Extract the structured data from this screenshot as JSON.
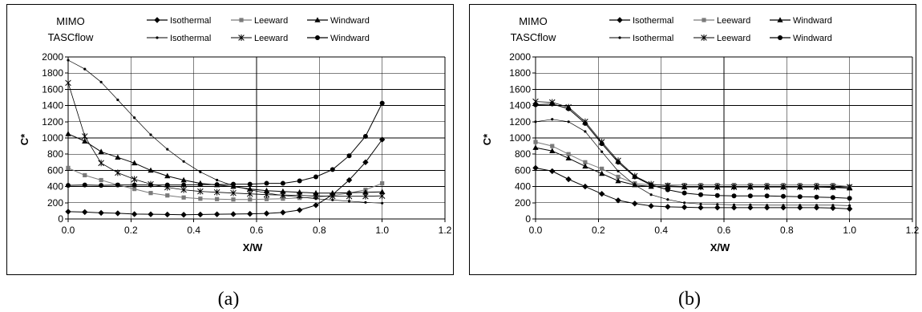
{
  "chart_data": [
    {
      "type": "line",
      "panel": "a",
      "caption": "(a)",
      "xlabel": "X/W",
      "ylabel": "C*",
      "xlim": [
        0,
        1.2
      ],
      "ylim": [
        0,
        2000
      ],
      "xticks": [
        "0.0",
        "0.2",
        "0.4",
        "0.6",
        "0.8",
        "1.0",
        "1.2"
      ],
      "yticks": [
        "0",
        "200",
        "400",
        "600",
        "800",
        "1000",
        "1200",
        "1400",
        "1600",
        "1800",
        "2000"
      ],
      "grid": true,
      "legend_groups": [
        "MIMO",
        "TASCflow"
      ],
      "x": [
        0,
        0.053,
        0.105,
        0.158,
        0.211,
        0.263,
        0.316,
        0.368,
        0.421,
        0.474,
        0.526,
        0.579,
        0.632,
        0.684,
        0.737,
        0.789,
        0.842,
        0.895,
        0.947,
        1.0
      ],
      "series": [
        {
          "name": "Isothermal",
          "group": "MIMO",
          "marker": "diamond",
          "values": [
            90,
            85,
            75,
            70,
            60,
            58,
            55,
            52,
            55,
            58,
            60,
            63,
            68,
            80,
            110,
            170,
            300,
            480,
            700,
            980
          ]
        },
        {
          "name": "Leeward",
          "group": "MIMO",
          "marker": "square",
          "values": [
            630,
            540,
            480,
            420,
            370,
            320,
            290,
            265,
            250,
            245,
            240,
            240,
            245,
            250,
            260,
            270,
            290,
            320,
            360,
            440
          ]
        },
        {
          "name": "Windward",
          "group": "MIMO",
          "marker": "triangle",
          "values": [
            1050,
            960,
            830,
            760,
            690,
            600,
            530,
            480,
            440,
            420,
            400,
            370,
            350,
            340,
            330,
            320,
            320,
            325,
            330,
            335
          ]
        },
        {
          "name": "Isothermal",
          "group": "TASCflow",
          "marker": "dot",
          "values": [
            1960,
            1850,
            1690,
            1470,
            1250,
            1040,
            860,
            710,
            580,
            480,
            410,
            360,
            320,
            290,
            270,
            250,
            235,
            220,
            205,
            195
          ]
        },
        {
          "name": "Leeward",
          "group": "TASCflow",
          "marker": "asterisk",
          "values": [
            1680,
            1020,
            690,
            570,
            490,
            430,
            390,
            360,
            340,
            330,
            320,
            310,
            300,
            295,
            290,
            285,
            280,
            280,
            280,
            285
          ]
        },
        {
          "name": "Windward",
          "group": "TASCflow",
          "marker": "circle",
          "values": [
            415,
            420,
            415,
            420,
            420,
            420,
            420,
            420,
            425,
            425,
            430,
            430,
            440,
            440,
            470,
            520,
            610,
            780,
            1020,
            1430
          ]
        }
      ]
    },
    {
      "type": "line",
      "panel": "b",
      "caption": "(b)",
      "xlabel": "X/W",
      "ylabel": "C*",
      "xlim": [
        0,
        1.2
      ],
      "ylim": [
        0,
        2000
      ],
      "xticks": [
        "0.0",
        "0.2",
        "0.4",
        "0.6",
        "0.8",
        "1.0",
        "1.2"
      ],
      "yticks": [
        "0",
        "200",
        "400",
        "600",
        "800",
        "1000",
        "1200",
        "1400",
        "1600",
        "1800",
        "2000"
      ],
      "grid": true,
      "legend_groups": [
        "MIMO",
        "TASCflow"
      ],
      "x": [
        0,
        0.053,
        0.105,
        0.158,
        0.211,
        0.263,
        0.316,
        0.368,
        0.421,
        0.474,
        0.526,
        0.579,
        0.632,
        0.684,
        0.737,
        0.789,
        0.842,
        0.895,
        0.947,
        1.0
      ],
      "series": [
        {
          "name": "Isothermal",
          "group": "MIMO",
          "marker": "diamond",
          "values": [
            630,
            590,
            490,
            400,
            310,
            230,
            190,
            160,
            150,
            145,
            140,
            140,
            140,
            140,
            140,
            140,
            140,
            140,
            135,
            125
          ]
        },
        {
          "name": "Leeward",
          "group": "MIMO",
          "marker": "square",
          "values": [
            950,
            900,
            800,
            700,
            620,
            520,
            440,
            420,
            420,
            420,
            420,
            420,
            420,
            420,
            420,
            420,
            420,
            420,
            420,
            400
          ]
        },
        {
          "name": "Windward",
          "group": "MIMO",
          "marker": "triangle",
          "values": [
            880,
            840,
            750,
            650,
            560,
            470,
            420,
            400,
            400,
            395,
            395,
            395,
            395,
            395,
            395,
            395,
            395,
            395,
            390,
            380
          ]
        },
        {
          "name": "Isothermal",
          "group": "TASCflow",
          "marker": "dot",
          "values": [
            1200,
            1230,
            1200,
            1080,
            830,
            590,
            420,
            300,
            240,
            200,
            185,
            180,
            175,
            175,
            170,
            170,
            170,
            170,
            170,
            165
          ]
        },
        {
          "name": "Leeward",
          "group": "TASCflow",
          "marker": "asterisk",
          "values": [
            1450,
            1440,
            1380,
            1200,
            950,
            720,
            530,
            430,
            410,
            400,
            395,
            395,
            395,
            395,
            395,
            395,
            395,
            395,
            395,
            395
          ]
        },
        {
          "name": "Windward",
          "group": "TASCflow",
          "marker": "circle",
          "values": [
            1410,
            1420,
            1360,
            1180,
            930,
            700,
            520,
            420,
            360,
            320,
            300,
            290,
            285,
            285,
            285,
            280,
            275,
            270,
            265,
            255
          ]
        }
      ]
    }
  ]
}
